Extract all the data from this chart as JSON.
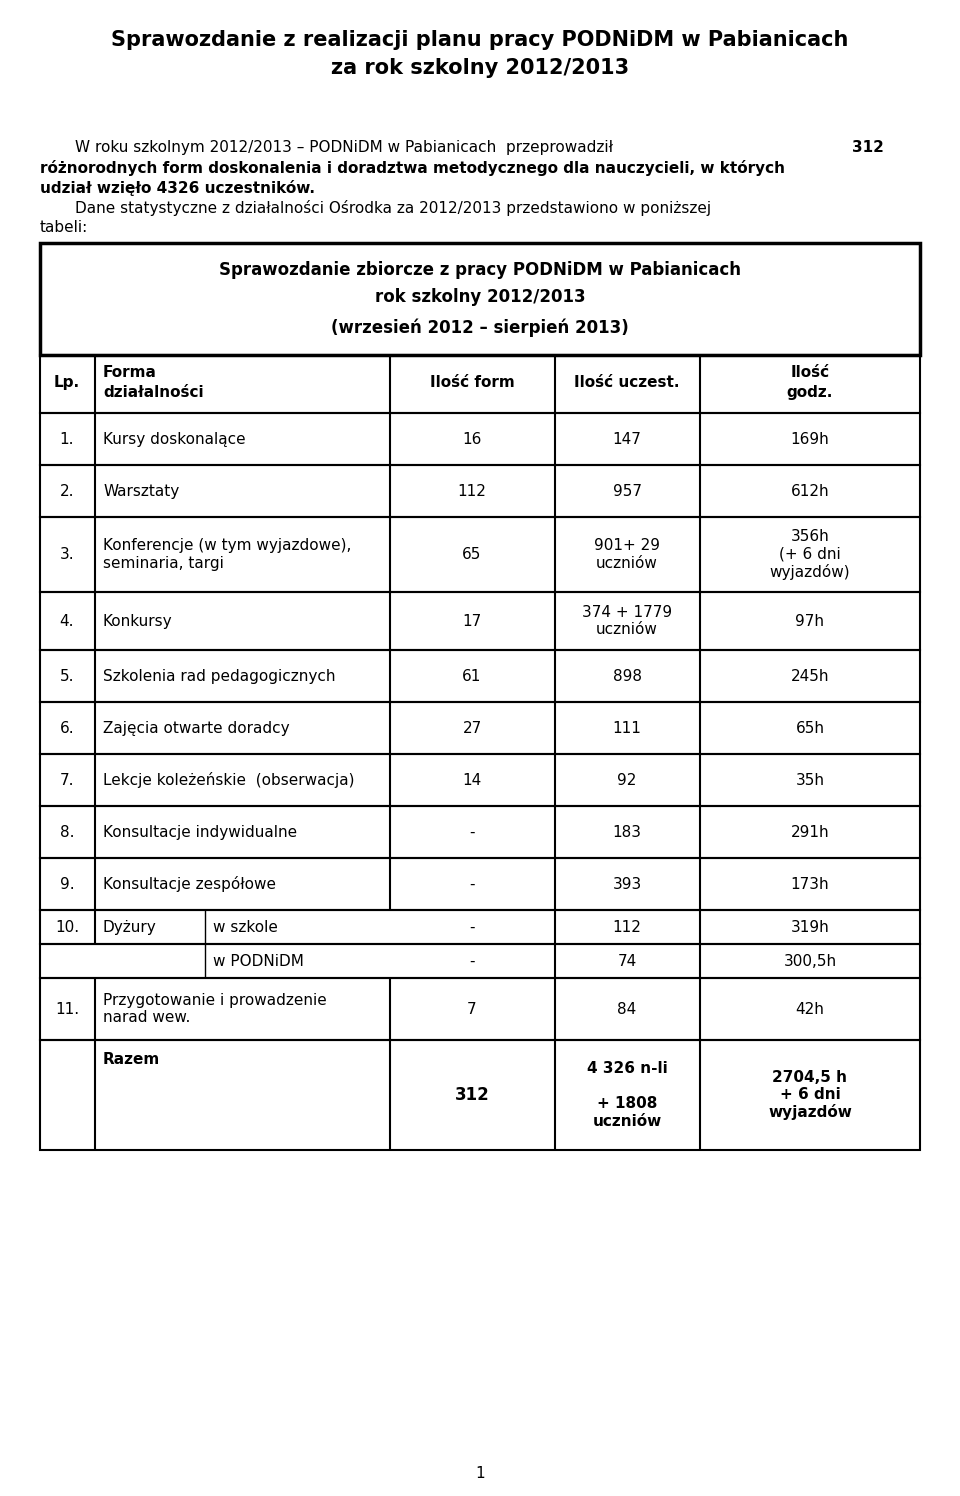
{
  "title_line1": "Sprawozdanie z realizacji planu pracy PODNiDM w Pabianicach",
  "title_line2": "za rok szkolny 2012/2013",
  "table_title_line1": "Sprawozdanie zbiorcze z pracy PODNiDM w Pabianicach",
  "table_title_line2": "rok szkolny 2012/2013",
  "table_title_line3": "(wrzesień 2012 – sierpień 2013)",
  "page_number": "1",
  "bg_color": "#ffffff",
  "text_color": "#000000"
}
